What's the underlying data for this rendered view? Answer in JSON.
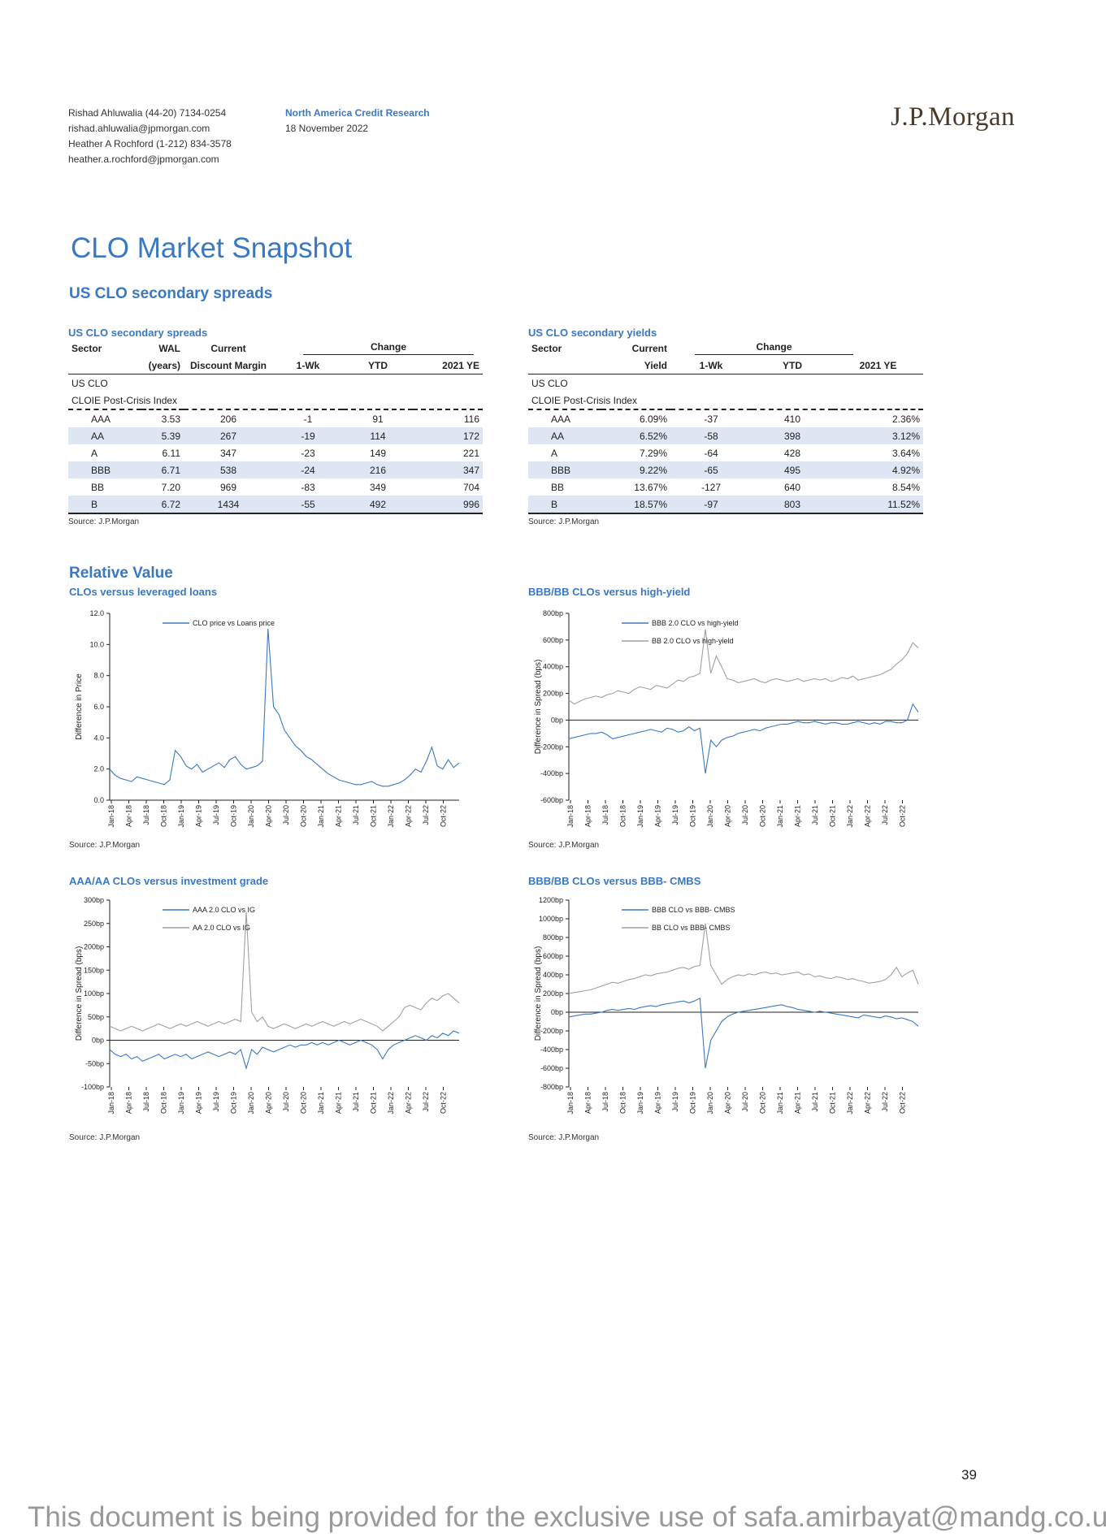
{
  "header": {
    "analysts": [
      "Rishad Ahluwalia (44-20) 7134-0254",
      "rishad.ahluwalia@jpmorgan.com",
      "Heather A Rochford (1-212) 834-3578",
      "heather.a.rochford@jpmorgan.com"
    ],
    "research": "North America Credit Research",
    "date": "18 November 2022",
    "logo": "J.P.Morgan"
  },
  "title": "CLO Market Snapshot",
  "section1": "US CLO secondary spreads",
  "spreads_table": {
    "title": "US CLO secondary spreads",
    "h1": [
      "Sector",
      "WAL",
      "Current",
      "Change"
    ],
    "h2": [
      "",
      "(years)",
      "Discount Margin",
      "1-Wk",
      "YTD",
      "2021 YE"
    ],
    "group": "US CLO",
    "index": "CLOIE Post-Crisis Index",
    "rows": [
      [
        "AAA",
        "3.53",
        "206",
        "-1",
        "91",
        "116"
      ],
      [
        "AA",
        "5.39",
        "267",
        "-19",
        "114",
        "172"
      ],
      [
        "A",
        "6.11",
        "347",
        "-23",
        "149",
        "221"
      ],
      [
        "BBB",
        "6.71",
        "538",
        "-24",
        "216",
        "347"
      ],
      [
        "BB",
        "7.20",
        "969",
        "-83",
        "349",
        "704"
      ],
      [
        "B",
        "6.72",
        "1434",
        "-55",
        "492",
        "996"
      ]
    ],
    "source": "Source: J.P.Morgan"
  },
  "yields_table": {
    "title": "US CLO secondary yields",
    "h1": [
      "Sector",
      "Current",
      "Change"
    ],
    "h2": [
      "",
      "Yield",
      "1-Wk",
      "YTD",
      "2021 YE"
    ],
    "group": "US CLO",
    "index": "CLOIE Post-Crisis Index",
    "rows": [
      [
        "AAA",
        "6.09%",
        "-37",
        "410",
        "2.36%"
      ],
      [
        "AA",
        "6.52%",
        "-58",
        "398",
        "3.12%"
      ],
      [
        "A",
        "7.29%",
        "-64",
        "428",
        "3.64%"
      ],
      [
        "BBB",
        "9.22%",
        "-65",
        "495",
        "4.92%"
      ],
      [
        "BB",
        "13.67%",
        "-127",
        "640",
        "8.54%"
      ],
      [
        "B",
        "18.57%",
        "-97",
        "803",
        "11.52%"
      ]
    ],
    "source": "Source: J.P.Morgan"
  },
  "section2": "Relative Value",
  "page_number": "39",
  "footer": "This document is being provided for the exclusive use of safa.amirbayat@mandg.co.uk.",
  "colors": {
    "blue": "#3a78c2",
    "grey": "#a0a0a0"
  },
  "chart_data": [
    {
      "id": "c1",
      "type": "line",
      "title": "CLOs versus leveraged loans",
      "ylabel": "Difference in Price",
      "ylim": [
        0,
        12
      ],
      "yticks": [
        0,
        2,
        4,
        6,
        8,
        10,
        12
      ],
      "ytick_labels": [
        "0.0",
        "2.0",
        "4.0",
        "6.0",
        "8.0",
        "10.0",
        "12.0"
      ],
      "x_labels": [
        "Jan-18",
        "Apr-18",
        "Jul-18",
        "Oct-18",
        "Jan-19",
        "Apr-19",
        "Jul-19",
        "Oct-19",
        "Jan-20",
        "Apr-20",
        "Jul-20",
        "Oct-20",
        "Jan-21",
        "Apr-21",
        "Jul-21",
        "Oct-21",
        "Jan-22",
        "Apr-22",
        "Jul-22",
        "Oct-22"
      ],
      "source": "Source: J.P.Morgan",
      "series": [
        {
          "name": "CLO price vs Loans price",
          "color": "#3a78c2",
          "values": [
            2.0,
            1.6,
            1.4,
            1.3,
            1.2,
            1.5,
            1.4,
            1.3,
            1.2,
            1.1,
            1.0,
            1.3,
            3.2,
            2.8,
            2.2,
            2.0,
            2.3,
            1.8,
            2.0,
            2.2,
            2.4,
            2.1,
            2.6,
            2.8,
            2.3,
            2.0,
            2.1,
            2.2,
            2.5,
            11.0,
            6.0,
            5.5,
            4.5,
            4.0,
            3.5,
            3.2,
            2.8,
            2.6,
            2.3,
            2.0,
            1.7,
            1.5,
            1.3,
            1.2,
            1.1,
            1.0,
            1.0,
            1.1,
            1.2,
            1.0,
            0.9,
            0.9,
            1.0,
            1.1,
            1.3,
            1.6,
            2.0,
            1.8,
            2.5,
            3.4,
            2.2,
            2.0,
            2.6,
            2.1,
            2.4
          ]
        }
      ]
    },
    {
      "id": "c2",
      "type": "line",
      "title": "BBB/BB CLOs versus high-yield",
      "ylabel": "Difference in Spread (bps)",
      "ylim": [
        -600,
        800
      ],
      "yticks": [
        -600,
        -400,
        -200,
        0,
        200,
        400,
        600,
        800
      ],
      "ytick_labels": [
        "-600bp",
        "-400bp",
        "-200bp",
        "0bp",
        "200bp",
        "400bp",
        "600bp",
        "800bp"
      ],
      "x_labels": [
        "Jan-18",
        "Apr-18",
        "Jul-18",
        "Oct-18",
        "Jan-19",
        "Apr-19",
        "Jul-19",
        "Oct-19",
        "Jan-20",
        "Apr-20",
        "Jul-20",
        "Oct-20",
        "Jan-21",
        "Apr-21",
        "Jul-21",
        "Oct-21",
        "Jan-22",
        "Apr-22",
        "Jul-22",
        "Oct-22"
      ],
      "source": "Source: J.P.Morgan",
      "series": [
        {
          "name": "BBB 2.0 CLO vs high-yield",
          "color": "#3a78c2",
          "values": [
            -140,
            -130,
            -120,
            -110,
            -100,
            -100,
            -90,
            -110,
            -140,
            -130,
            -120,
            -110,
            -100,
            -90,
            -80,
            -70,
            -80,
            -90,
            -60,
            -70,
            -90,
            -80,
            -50,
            -80,
            -60,
            -400,
            -150,
            -200,
            -150,
            -130,
            -120,
            -100,
            -90,
            -80,
            -70,
            -80,
            -60,
            -50,
            -40,
            -30,
            -30,
            -20,
            -10,
            -20,
            -20,
            -10,
            -20,
            -30,
            -20,
            -20,
            -30,
            -30,
            -20,
            -10,
            -20,
            -30,
            -20,
            -30,
            -10,
            -10,
            -20,
            -20,
            0,
            120,
            60
          ]
        },
        {
          "name": "BB 2.0 CLO vs high-yield",
          "color": "#a0a0a0",
          "values": [
            150,
            120,
            140,
            160,
            170,
            180,
            170,
            190,
            200,
            220,
            210,
            200,
            230,
            250,
            240,
            230,
            260,
            250,
            240,
            270,
            300,
            290,
            320,
            330,
            350,
            680,
            350,
            480,
            400,
            310,
            300,
            280,
            290,
            300,
            310,
            290,
            280,
            300,
            310,
            300,
            290,
            300,
            310,
            290,
            300,
            310,
            300,
            310,
            290,
            300,
            320,
            310,
            330,
            300,
            310,
            320,
            330,
            340,
            360,
            380,
            420,
            450,
            500,
            580,
            540
          ]
        }
      ]
    },
    {
      "id": "c3",
      "type": "line",
      "title": "AAA/AA CLOs versus investment grade",
      "ylabel": "Difference in Spread (bps)",
      "ylim": [
        -100,
        300
      ],
      "yticks": [
        -100,
        -50,
        0,
        50,
        100,
        150,
        200,
        250,
        300
      ],
      "ytick_labels": [
        "-100bp",
        "-50bp",
        "0bp",
        "50bp",
        "100bp",
        "150bp",
        "200bp",
        "250bp",
        "300bp"
      ],
      "x_labels": [
        "Jan-18",
        "Apr-18",
        "Jul-18",
        "Oct-18",
        "Jan-19",
        "Apr-19",
        "Jul-19",
        "Oct-19",
        "Jan-20",
        "Apr-20",
        "Jul-20",
        "Oct-20",
        "Jan-21",
        "Apr-21",
        "Jul-21",
        "Oct-21",
        "Jan-22",
        "Apr-22",
        "Jul-22",
        "Oct-22"
      ],
      "source": "Source: J.P.Morgan",
      "series": [
        {
          "name": "AAA 2.0 CLO vs IG",
          "color": "#3a78c2",
          "values": [
            -20,
            -30,
            -35,
            -30,
            -40,
            -35,
            -45,
            -40,
            -35,
            -30,
            -40,
            -35,
            -30,
            -35,
            -30,
            -40,
            -35,
            -30,
            -25,
            -30,
            -35,
            -30,
            -25,
            -30,
            -20,
            -60,
            -20,
            -30,
            -15,
            -20,
            -25,
            -20,
            -15,
            -10,
            -15,
            -10,
            -10,
            -5,
            -10,
            -5,
            -10,
            -5,
            0,
            -5,
            -10,
            -5,
            0,
            -5,
            -10,
            -20,
            -40,
            -20,
            -10,
            -5,
            0,
            5,
            10,
            5,
            0,
            10,
            5,
            15,
            10,
            20,
            15
          ]
        },
        {
          "name": "AA 2.0 CLO vs IG",
          "color": "#a0a0a0",
          "values": [
            30,
            25,
            20,
            25,
            30,
            25,
            20,
            25,
            30,
            35,
            30,
            25,
            30,
            35,
            30,
            35,
            40,
            35,
            30,
            35,
            40,
            35,
            40,
            45,
            40,
            275,
            60,
            40,
            50,
            30,
            25,
            30,
            35,
            30,
            25,
            30,
            35,
            30,
            35,
            40,
            35,
            30,
            35,
            40,
            35,
            40,
            45,
            40,
            35,
            30,
            20,
            30,
            40,
            50,
            70,
            75,
            70,
            65,
            80,
            90,
            85,
            95,
            100,
            90,
            80
          ]
        }
      ]
    },
    {
      "id": "c4",
      "type": "line",
      "title": "BBB/BB CLOs versus BBB- CMBS",
      "ylabel": "Difference in Spread (bps)",
      "ylim": [
        -800,
        1200
      ],
      "yticks": [
        -800,
        -600,
        -400,
        -200,
        0,
        200,
        400,
        600,
        800,
        1000,
        1200
      ],
      "ytick_labels": [
        "-800bp",
        "-600bp",
        "-400bp",
        "-200bp",
        "0bp",
        "200bp",
        "400bp",
        "600bp",
        "800bp",
        "1000bp",
        "1200bp"
      ],
      "x_labels": [
        "Jan-18",
        "Apr-18",
        "Jul-18",
        "Oct-18",
        "Jan-19",
        "Apr-19",
        "Jul-19",
        "Oct-19",
        "Jan-20",
        "Apr-20",
        "Jul-20",
        "Oct-20",
        "Jan-21",
        "Apr-21",
        "Jul-21",
        "Oct-21",
        "Jan-22",
        "Apr-22",
        "Jul-22",
        "Oct-22"
      ],
      "source": "Source: J.P.Morgan",
      "series": [
        {
          "name": "BBB CLO vs BBB- CMBS",
          "color": "#3a78c2",
          "values": [
            -50,
            -40,
            -30,
            -20,
            -20,
            -10,
            0,
            20,
            30,
            20,
            30,
            40,
            30,
            50,
            60,
            70,
            60,
            80,
            90,
            100,
            110,
            120,
            100,
            120,
            150,
            -600,
            -300,
            -200,
            -100,
            -50,
            -20,
            0,
            10,
            20,
            30,
            40,
            50,
            60,
            70,
            80,
            60,
            50,
            30,
            20,
            10,
            0,
            10,
            0,
            -10,
            -20,
            -30,
            -40,
            -50,
            -60,
            -30,
            -40,
            -50,
            -60,
            -40,
            -50,
            -70,
            -60,
            -80,
            -100,
            -150
          ]
        },
        {
          "name": "BB CLO vs BBB- CMBS",
          "color": "#a0a0a0",
          "values": [
            200,
            210,
            220,
            230,
            240,
            260,
            280,
            300,
            320,
            310,
            330,
            350,
            360,
            380,
            400,
            390,
            410,
            420,
            430,
            450,
            470,
            480,
            460,
            490,
            500,
            950,
            500,
            400,
            300,
            350,
            380,
            400,
            390,
            410,
            400,
            420,
            430,
            410,
            420,
            400,
            410,
            420,
            430,
            400,
            410,
            380,
            390,
            370,
            360,
            380,
            370,
            350,
            360,
            340,
            330,
            310,
            320,
            330,
            350,
            400,
            480,
            380,
            420,
            450,
            300
          ]
        }
      ]
    }
  ]
}
